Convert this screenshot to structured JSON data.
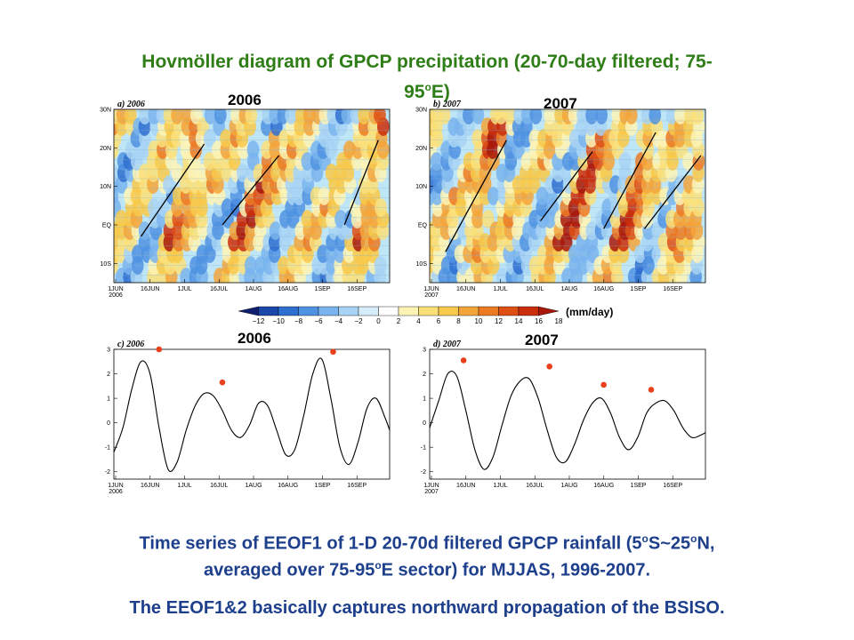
{
  "title": {
    "line1": "Hovmöller diagram of GPCP precipitation (20-70-day filtered; 75-",
    "line2_pre": "95",
    "line2_sup": "o",
    "line2_post": "E)"
  },
  "year_labels": {
    "top_left": "2006",
    "top_right": "2007",
    "bottom_left": "2006",
    "bottom_right": "2007"
  },
  "colorbar": {
    "unit": "(mm/day)",
    "tick_labels": [
      "−12",
      "−10",
      "−8",
      "−6",
      "−4",
      "−2",
      "0",
      "2",
      "4",
      "6",
      "8",
      "10",
      "12",
      "14",
      "16",
      "18"
    ],
    "colors": [
      "#10206e",
      "#1a47a8",
      "#2e6fd0",
      "#4f92e2",
      "#79b4ee",
      "#a8d3f5",
      "#d6ecfa",
      "#ffffff",
      "#fdf3b5",
      "#fbe07a",
      "#f8c94a",
      "#f4a53a",
      "#ec7a23",
      "#de4f14",
      "#c92d0c",
      "#a8180a"
    ]
  },
  "chart_data": [
    {
      "type": "heatmap",
      "panel_label": "a) 2006",
      "ylabel_ticks": [
        "30N",
        "20N",
        "10N",
        "EQ",
        "10S"
      ],
      "y_values_lat": [
        30,
        20,
        10,
        0,
        -10
      ],
      "ylim": [
        -15,
        30
      ],
      "xlabel_ticks": [
        "1JUN\n2006",
        "16JUN",
        "1JUL",
        "16JUL",
        "1AUG",
        "16AUG",
        "1SEP",
        "16SEP"
      ],
      "xlim_days": [
        0,
        122
      ],
      "propagation_lines": [
        {
          "start": [
            12,
            -3
          ],
          "end": [
            40,
            21
          ]
        },
        {
          "start": [
            48,
            0
          ],
          "end": [
            73,
            18
          ]
        },
        {
          "start": [
            102,
            0
          ],
          "end": [
            117,
            22
          ]
        }
      ],
      "wet_events": [
        {
          "day": 25,
          "lat_start": -5,
          "lat_end": 22
        },
        {
          "day": 57,
          "lat_start": -3,
          "lat_end": 18
        },
        {
          "day": 108,
          "lat_start": -4,
          "lat_end": 24
        }
      ]
    },
    {
      "type": "heatmap",
      "panel_label": "b) 2007",
      "ylabel_ticks": [
        "30N",
        "20N",
        "10N",
        "EQ",
        "10S"
      ],
      "y_values_lat": [
        30,
        20,
        10,
        0,
        -10
      ],
      "ylim": [
        -15,
        30
      ],
      "xlabel_ticks": [
        "1JUN\n2007",
        "16JUN",
        "1JUL",
        "16JUL",
        "1AUG",
        "16AUG",
        "1SEP",
        "16SEP"
      ],
      "xlim_days": [
        0,
        122
      ],
      "propagation_lines": [
        {
          "start": [
            7,
            -7
          ],
          "end": [
            34,
            22
          ]
        },
        {
          "start": [
            49,
            1
          ],
          "end": [
            72,
            19
          ]
        },
        {
          "start": [
            77,
            -1
          ],
          "end": [
            100,
            24
          ]
        },
        {
          "start": [
            95,
            -1
          ],
          "end": [
            120,
            18
          ]
        }
      ],
      "wet_events": [
        {
          "day": 18,
          "lat_start": -8,
          "lat_end": 22
        },
        {
          "day": 60,
          "lat_start": -5,
          "lat_end": 18
        },
        {
          "day": 85,
          "lat_start": -4,
          "lat_end": 23
        },
        {
          "day": 108,
          "lat_start": -3,
          "lat_end": 18
        }
      ]
    },
    {
      "type": "line",
      "panel_label": "c) 2006",
      "ylim": [
        -2.3,
        3
      ],
      "yticks": [
        -2,
        -1,
        0,
        1,
        2,
        3
      ],
      "xlabel_ticks": [
        "1JUN\n2006",
        "16JUN",
        "1JUL",
        "16JUL",
        "1AUG",
        "16AUG",
        "1SEP",
        "16SEP"
      ],
      "xlim_days": [
        0,
        122
      ],
      "series": [
        {
          "x": [
            0,
            4,
            8,
            12,
            16,
            20,
            24,
            28,
            32,
            36,
            40,
            44,
            48,
            52,
            56,
            60,
            64,
            68,
            72,
            76,
            80,
            84,
            88,
            92,
            96,
            100,
            104,
            108,
            112,
            116,
            120,
            122
          ],
          "y": [
            -1.2,
            -0.2,
            1.4,
            2.5,
            2.0,
            -0.2,
            -1.9,
            -1.6,
            -0.3,
            0.7,
            1.2,
            1.1,
            0.5,
            -0.3,
            -0.6,
            -0.1,
            0.8,
            0.7,
            -0.3,
            -1.3,
            -1.1,
            0.3,
            2.0,
            2.6,
            1.0,
            -1.0,
            -1.7,
            -0.8,
            0.6,
            1.0,
            0.2,
            -0.3
          ]
        }
      ],
      "markers": [
        {
          "day": 20,
          "value": 3.0
        },
        {
          "day": 48,
          "value": 1.65
        },
        {
          "day": 97,
          "value": 2.9
        }
      ]
    },
    {
      "type": "line",
      "panel_label": "d) 2007",
      "ylim": [
        -2.3,
        3
      ],
      "yticks": [
        -2,
        -1,
        0,
        1,
        2,
        3
      ],
      "xlabel_ticks": [
        "1JUN\n2007",
        "16JUN",
        "1JUL",
        "16JUL",
        "1AUG",
        "16AUG",
        "1SEP",
        "16SEP"
      ],
      "xlim_days": [
        0,
        122
      ],
      "series": [
        {
          "x": [
            0,
            4,
            8,
            12,
            16,
            20,
            24,
            28,
            32,
            36,
            40,
            44,
            48,
            52,
            56,
            60,
            64,
            68,
            72,
            76,
            80,
            84,
            88,
            92,
            96,
            100,
            104,
            108,
            112,
            116,
            120,
            122
          ],
          "y": [
            -0.2,
            0.9,
            2.0,
            1.9,
            0.5,
            -1.1,
            -1.9,
            -1.4,
            -0.1,
            1.1,
            1.7,
            1.8,
            1.0,
            -0.3,
            -1.4,
            -1.6,
            -0.9,
            0.1,
            0.8,
            1.0,
            0.4,
            -0.6,
            -1.1,
            -0.6,
            0.4,
            0.8,
            0.9,
            0.5,
            -0.2,
            -0.6,
            -0.5,
            -0.4
          ]
        }
      ],
      "markers": [
        {
          "day": 15,
          "value": 2.55
        },
        {
          "day": 53,
          "value": 2.3
        },
        {
          "day": 77,
          "value": 1.55
        },
        {
          "day": 98,
          "value": 1.35
        }
      ]
    }
  ],
  "caption": {
    "line1_a": "Time series of EEOF1 of 1-D 20-70d filtered GPCP rainfall (5",
    "line1_sup1": "o",
    "line1_b": "S~25",
    "line1_sup2": "o",
    "line1_c": "N,",
    "line2_a": "averaged over 75-95",
    "line2_sup": "o",
    "line2_b": "E sector) for MJJAS, 1996-2007.",
    "line3": "The EEOF1&2 basically captures northward propagation of the BSISO."
  }
}
